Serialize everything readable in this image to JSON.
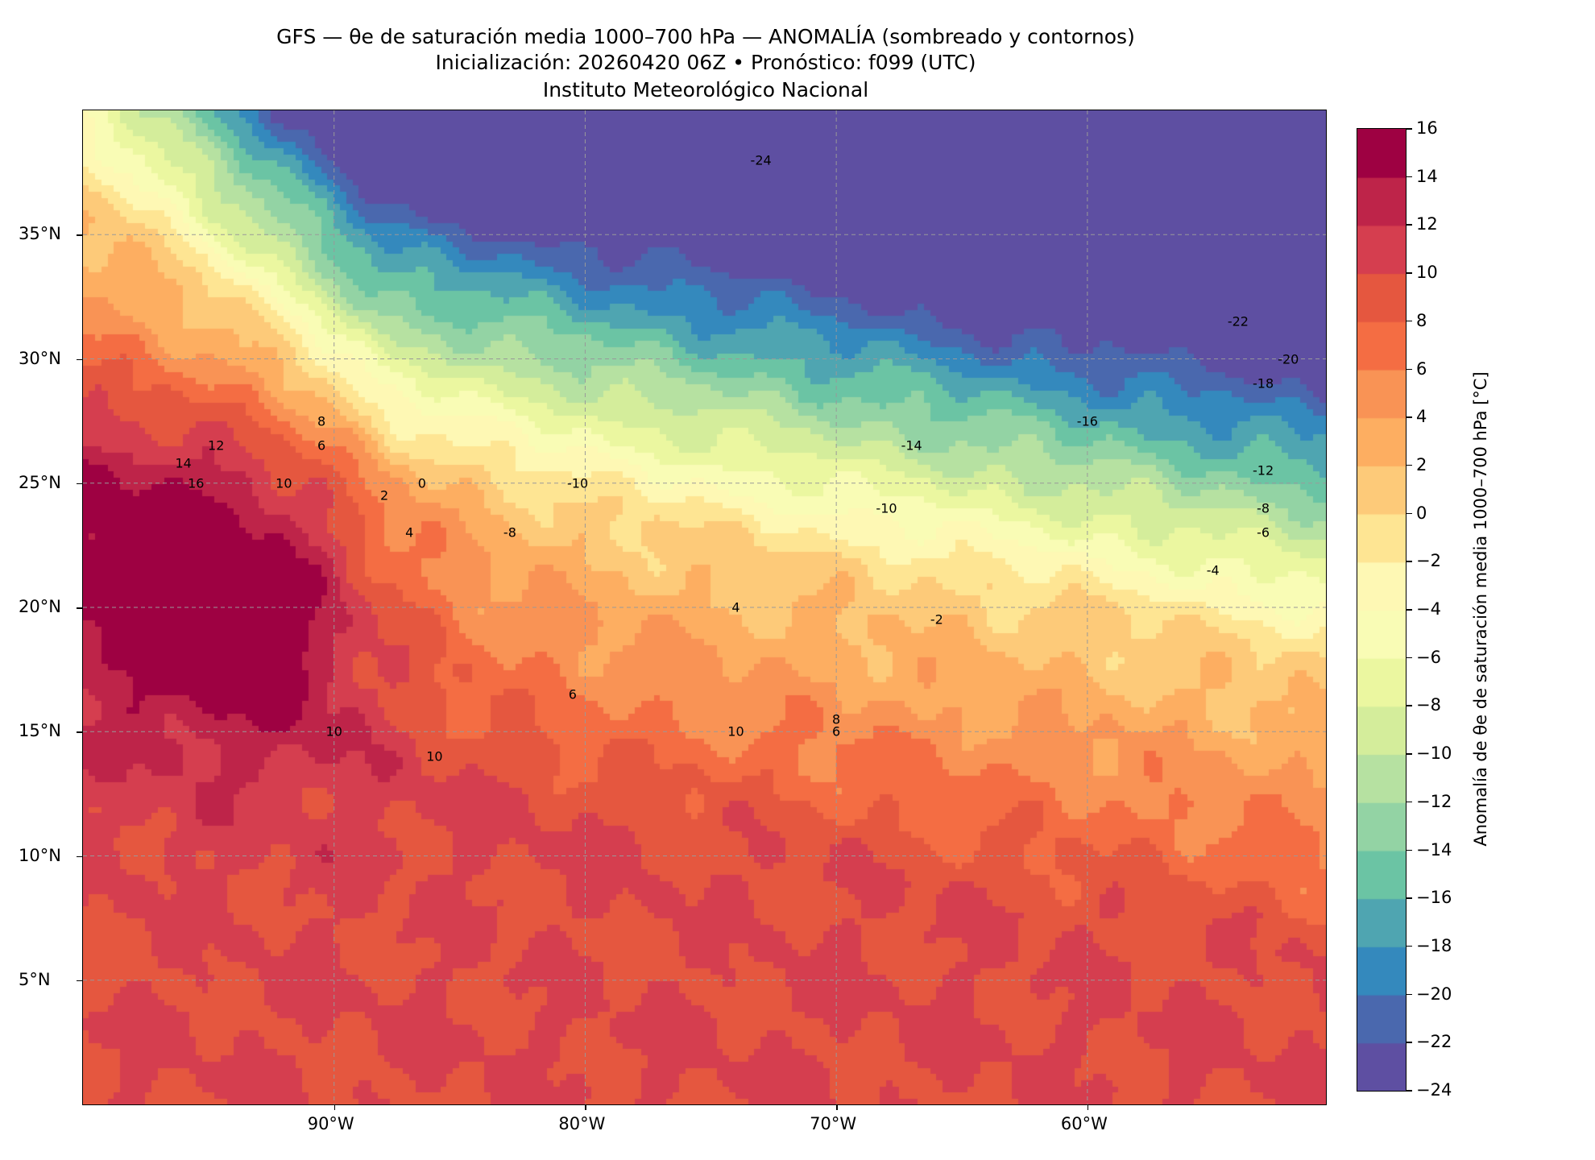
{
  "chart_data": {
    "type": "heatmap",
    "title": "GFS — θe de saturación media 1000–700 hPa — ANOMALÍA (sombreado y contornos)",
    "subtitle": "Inicialización: 20260420 06Z   •   Pronóstico: f099 (UTC)",
    "institution": "Instituto Meteorológico Nacional",
    "xlabel": "",
    "ylabel": "",
    "xlim": [
      -100,
      -50.5
    ],
    "ylim": [
      0,
      40
    ],
    "x_ticks": [
      {
        "value": -90,
        "label": "90°W"
      },
      {
        "value": -80,
        "label": "80°W"
      },
      {
        "value": -70,
        "label": "70°W"
      },
      {
        "value": -60,
        "label": "60°W"
      }
    ],
    "y_ticks": [
      {
        "value": 5,
        "label": "5°N"
      },
      {
        "value": 10,
        "label": "10°N"
      },
      {
        "value": 15,
        "label": "15°N"
      },
      {
        "value": 20,
        "label": "20°N"
      },
      {
        "value": 25,
        "label": "25°N"
      },
      {
        "value": 30,
        "label": "30°N"
      },
      {
        "value": 35,
        "label": "35°N"
      }
    ],
    "grid": true,
    "colorbar": {
      "label": "Anomalía de θe de saturación media 1000–700 hPa [°C]",
      "levels": [
        -24,
        -22,
        -20,
        -18,
        -16,
        -14,
        -12,
        -10,
        -8,
        -6,
        -4,
        -2,
        0,
        2,
        4,
        6,
        8,
        10,
        12,
        14,
        16
      ],
      "tick_labels": [
        "16",
        "14",
        "12",
        "10",
        "8",
        "6",
        "4",
        "2",
        "0",
        "−2",
        "−4",
        "−6",
        "−8",
        "−10",
        "−12",
        "−14",
        "−16",
        "−18",
        "−20",
        "−22",
        "−24"
      ],
      "colors": [
        "#5e4fa2",
        "#4a68ae",
        "#3489bd",
        "#4fa5b1",
        "#6bc4a4",
        "#93d3a4",
        "#b6e1a1",
        "#d4ed9b",
        "#ebf7a0",
        "#f9fcb5",
        "#fef8b4",
        "#fee593",
        "#fdca79",
        "#fdae61",
        "#f99355",
        "#f46d43",
        "#e5573f",
        "#d53e4f",
        "#be2449",
        "#9e0142"
      ]
    },
    "contour_labels": [
      "-24",
      "-22",
      "-20",
      "-18",
      "-16",
      "-14",
      "-12",
      "-10",
      "-8",
      "-6",
      "-4",
      "-2",
      "0",
      "2",
      "4",
      "6",
      "8",
      "10",
      "12",
      "14",
      "16",
      "-10",
      "-8",
      "6",
      "10",
      "10",
      "6",
      "8",
      "4",
      "10"
    ]
  }
}
